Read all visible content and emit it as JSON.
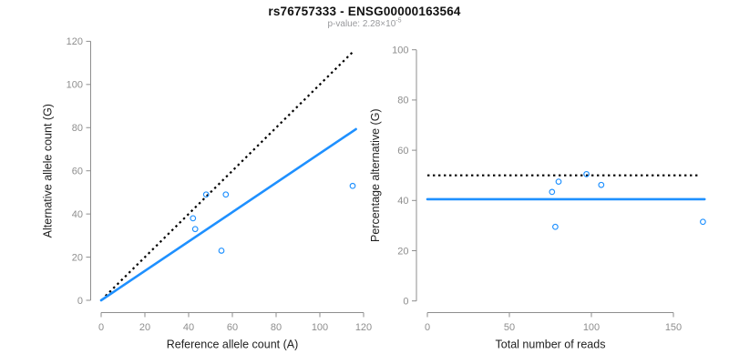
{
  "header": {
    "title": "rs76757333 - ENSG00000163564",
    "pvalue_text": "p-value: 2.28×10",
    "pvalue_exponent": "-5"
  },
  "colors": {
    "accent_blue": "#1E90FF",
    "dotted_black": "#000000",
    "axis_gray": "#8e8e8e",
    "tick_label_gray": "#8e8e8e",
    "label_black": "#1f1f1f",
    "subtitle_gray": "#98999c",
    "background": "#ffffff"
  },
  "chart_data": [
    {
      "type": "scatter",
      "title": "",
      "xlabel": "Reference allele count (A)",
      "ylabel": "Alternative allele count (G)",
      "xlim": [
        0,
        120
      ],
      "ylim": [
        0,
        120
      ],
      "xticks": [
        0,
        20,
        40,
        60,
        80,
        100,
        120
      ],
      "yticks": [
        0,
        20,
        40,
        60,
        80,
        100,
        120
      ],
      "grid": false,
      "legend": null,
      "marker": "open-circle",
      "points": [
        {
          "x": 48,
          "y": 49
        },
        {
          "x": 57,
          "y": 49
        },
        {
          "x": 42,
          "y": 38
        },
        {
          "x": 43,
          "y": 33
        },
        {
          "x": 55,
          "y": 23
        },
        {
          "x": 115,
          "y": 53
        }
      ],
      "lines": [
        {
          "name": "identity-line",
          "style": "dotted",
          "color": "#000000",
          "x1": 2,
          "y1": 2,
          "x2": 115,
          "y2": 115
        },
        {
          "name": "fit-line",
          "style": "solid",
          "color": "#1E90FF",
          "x1": 0,
          "y1": 0,
          "x2": 116.5,
          "y2": 79.3
        }
      ]
    },
    {
      "type": "scatter",
      "title": "",
      "xlabel": "Total number of reads",
      "ylabel": "Percentage alternative (G)",
      "xlim": [
        0,
        170
      ],
      "ylim": [
        0,
        100
      ],
      "xticks": [
        0,
        50,
        100,
        150
      ],
      "yticks": [
        0,
        20,
        40,
        60,
        80,
        100
      ],
      "grid": false,
      "legend": null,
      "marker": "open-circle",
      "points": [
        {
          "x": 97,
          "y": 50.5
        },
        {
          "x": 106,
          "y": 46.2
        },
        {
          "x": 80,
          "y": 47.5
        },
        {
          "x": 76,
          "y": 43.4
        },
        {
          "x": 78,
          "y": 29.5
        },
        {
          "x": 168,
          "y": 31.5
        }
      ],
      "lines": [
        {
          "name": "expected-50pct-line",
          "style": "dotted",
          "color": "#000000",
          "x1": 0,
          "y1": 50,
          "x2": 166,
          "y2": 50
        },
        {
          "name": "observed-mean-line",
          "style": "solid",
          "color": "#1E90FF",
          "x1": 0,
          "y1": 40.5,
          "x2": 169,
          "y2": 40.5
        }
      ]
    }
  ]
}
